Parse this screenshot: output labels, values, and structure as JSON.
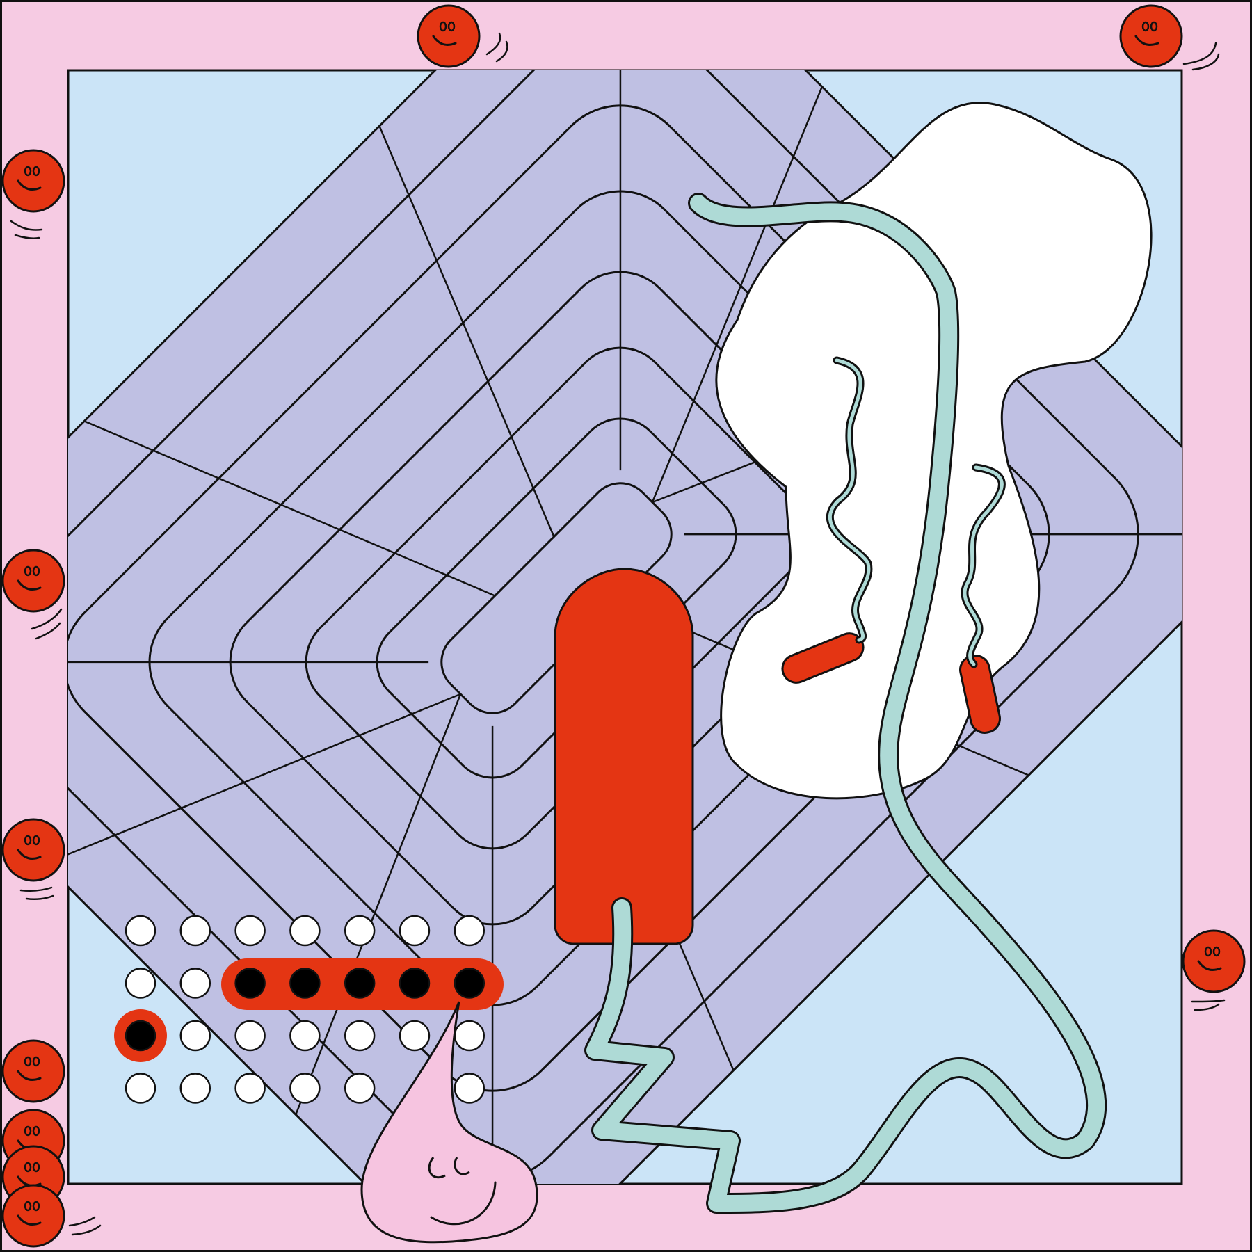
{
  "colors": {
    "outer_frame": "#f6cbe3",
    "inner_panel": "#cbe4f7",
    "grid_tile": "#bfc0e3",
    "line": "#111111",
    "accent_red": "#e43513",
    "mint_tube": "#aedad6",
    "white_blob": "#ffffff",
    "pink_drop": "#f6c4e0",
    "dot_empty": "#ffffff",
    "dot_filled": "#000000"
  },
  "icons": {
    "smiley": "smiley-ball-icon",
    "drop": "smiling-drop-icon"
  },
  "dot_grid": {
    "rows": 4,
    "cols": 7,
    "filled": [
      [
        1,
        2
      ],
      [
        1,
        3
      ],
      [
        1,
        4
      ],
      [
        1,
        5
      ],
      [
        1,
        6
      ],
      [
        2,
        0
      ]
    ],
    "missing": [
      [
        3,
        5
      ]
    ]
  }
}
